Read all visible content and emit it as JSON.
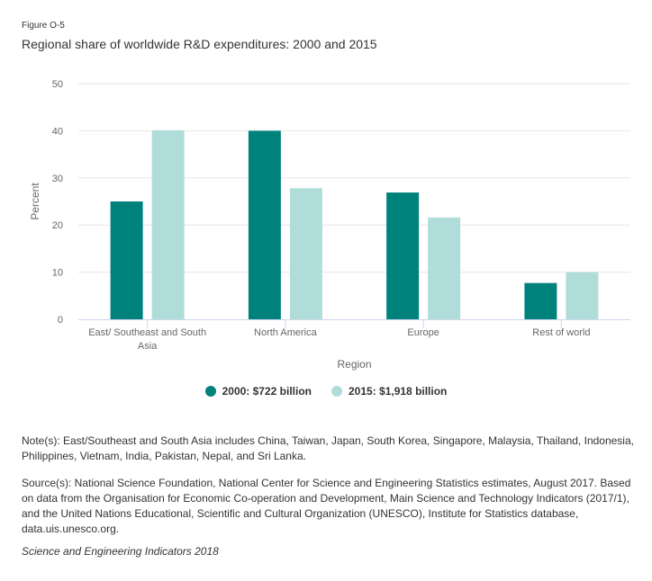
{
  "figure_label": "Figure O-5",
  "title": "Regional share of worldwide R&D expenditures: 2000 and 2015",
  "chart_data": {
    "type": "bar",
    "title": "Regional share of worldwide R&D expenditures: 2000 and 2015",
    "xlabel": "Region",
    "ylabel": "Percent",
    "ylim": [
      0,
      50
    ],
    "yticks": [
      0,
      10,
      20,
      30,
      40,
      50
    ],
    "grid": true,
    "legend_position": "bottom",
    "categories": [
      "East/ Southeast and South Asia",
      "North America",
      "Europe",
      "Rest of world"
    ],
    "category_lines": [
      [
        "East/ Southeast and South",
        "Asia"
      ],
      [
        "North America"
      ],
      [
        "Europe"
      ],
      [
        "Rest of world"
      ]
    ],
    "series": [
      {
        "name": "2000: $722 billion",
        "color": "#00827c",
        "values": [
          25.0,
          40.0,
          26.9,
          7.7
        ]
      },
      {
        "name": "2015: $1,918 billion",
        "color": "#b0ddda",
        "values": [
          40.1,
          27.8,
          21.6,
          10.0
        ]
      }
    ]
  },
  "notes": {
    "note": "Note(s): East/Southeast and South Asia includes China, Taiwan, Japan, South Korea, Singapore, Malaysia, Thailand, Indonesia, Philippines, Vietnam, India, Pakistan, Nepal, and Sri Lanka.",
    "source": "Source(s): National Science Foundation, National Center for Science and Engineering Statistics estimates, August 2017. Based on data from the Organisation for Economic Co-operation and Development, Main Science and Technology Indicators (2017/1), and the United Nations Educational, Scientific and Cultural Organization (UNESCO), Institute for Statistics database, data.uis.unesco.org.",
    "credit": "Science and Engineering Indicators 2018"
  }
}
